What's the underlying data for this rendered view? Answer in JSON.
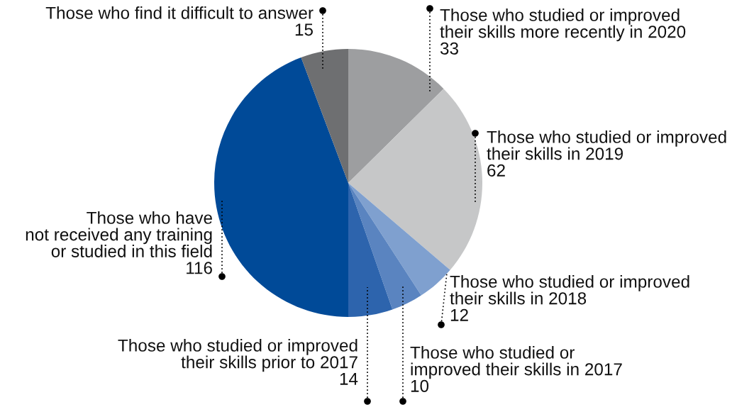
{
  "chart_data": {
    "type": "pie",
    "categories": [
      "Those who studied or improved\ntheir skills more recently in 2020",
      "Those who studied or improved\ntheir skills in 2019",
      "Those who studied or improved\ntheir skills in 2018",
      "Those who studied or\nimproved their skills in 2017",
      "Those who studied or improved\ntheir skills prior to 2017",
      "Those who have\nnot received any training\nor studied in this field",
      "Those who find it difficult to answer"
    ],
    "values": [
      33,
      62,
      12,
      10,
      14,
      116,
      15
    ],
    "colors": [
      "#9d9ea0",
      "#c6c7c8",
      "#7fa0cf",
      "#5a84c0",
      "#2d64ad",
      "#004a98",
      "#6e6f71"
    ],
    "data_labels": true
  }
}
